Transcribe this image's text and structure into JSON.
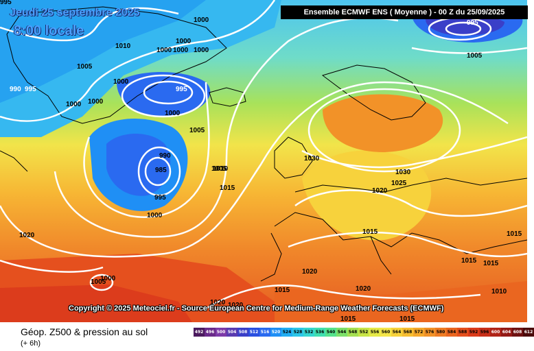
{
  "header": {
    "date_label": "Jeudi 25 septembre 2025",
    "time_label": "8:00 locale",
    "model_label": "Ensemble ECMWF ENS  ( Moyenne )  -  00 Z du 25/09/2025"
  },
  "copyright": "Copyright © 2025 Meteociel.fr - Source European Centre for Medium-Range Weather Forecasts (ECMWF)",
  "footer": {
    "title": "Géop. Z500 & pression au sol",
    "subtitle": "(+ 6h)"
  },
  "pressure_labels": [
    {
      "text": "995",
      "tone": "black"
    },
    {
      "text": "1000",
      "tone": "black"
    },
    {
      "text": "1010",
      "tone": "black"
    },
    {
      "text": "1000",
      "tone": "black"
    },
    {
      "text": "1000",
      "tone": "black"
    },
    {
      "text": "1005",
      "tone": "black"
    },
    {
      "text": "1000",
      "tone": "black"
    },
    {
      "text": "1000",
      "tone": "black"
    },
    {
      "text": "1005",
      "tone": "black"
    },
    {
      "text": "1000",
      "tone": "black"
    },
    {
      "text": "990",
      "tone": "white"
    },
    {
      "text": "995",
      "tone": "white"
    },
    {
      "text": "1000",
      "tone": "black"
    },
    {
      "text": "1000",
      "tone": "black"
    },
    {
      "text": "995",
      "tone": "white"
    },
    {
      "text": "1000",
      "tone": "black"
    },
    {
      "text": "1005",
      "tone": "black"
    },
    {
      "text": "990",
      "tone": "black"
    },
    {
      "text": "985",
      "tone": "black"
    },
    {
      "text": "995",
      "tone": "black"
    },
    {
      "text": "1010",
      "tone": "black"
    },
    {
      "text": "1015",
      "tone": "black"
    },
    {
      "text": "1000",
      "tone": "black"
    },
    {
      "text": "1020",
      "tone": "black"
    },
    {
      "text": "1030",
      "tone": "black"
    },
    {
      "text": "1030",
      "tone": "black"
    },
    {
      "text": "1025",
      "tone": "black"
    },
    {
      "text": "1020",
      "tone": "black"
    },
    {
      "text": "1015",
      "tone": "black"
    },
    {
      "text": "1020",
      "tone": "black"
    },
    {
      "text": "1015",
      "tone": "black"
    },
    {
      "text": "1020",
      "tone": "black"
    },
    {
      "text": "1015",
      "tone": "black"
    },
    {
      "text": "1015",
      "tone": "black"
    },
    {
      "text": "1010",
      "tone": "black"
    },
    {
      "text": "1015",
      "tone": "black"
    },
    {
      "text": "1005",
      "tone": "black"
    },
    {
      "text": "1000",
      "tone": "black"
    },
    {
      "text": "1020",
      "tone": "black"
    },
    {
      "text": "1020",
      "tone": "black"
    },
    {
      "text": "1015",
      "tone": "black"
    },
    {
      "text": "1015",
      "tone": "black"
    },
    {
      "text": "995",
      "tone": "white"
    },
    {
      "text": "1005",
      "tone": "black"
    }
  ],
  "legend": {
    "values": [
      "492",
      "496",
      "500",
      "504",
      "508",
      "512",
      "516",
      "520",
      "524",
      "528",
      "532",
      "536",
      "540",
      "544",
      "548",
      "552",
      "556",
      "560",
      "564",
      "568",
      "572",
      "576",
      "580",
      "584",
      "588",
      "592",
      "596",
      "600",
      "604",
      "608",
      "612"
    ],
    "colors": [
      "#4b1a5e",
      "#6a2a8a",
      "#7d3aa8",
      "#5a3bb0",
      "#3a3fc8",
      "#2a4fe0",
      "#2a6af0",
      "#1f8ff5",
      "#22aef3",
      "#2cc6e8",
      "#35d6d0",
      "#40dfb0",
      "#55e28c",
      "#7ce06a",
      "#a5e052",
      "#c8e548",
      "#e6ea48",
      "#f5e64a",
      "#f7d23c",
      "#f7be32",
      "#f5a82c",
      "#f29228",
      "#ef7c24",
      "#ea6620",
      "#e5501e",
      "#dc3c1c",
      "#c9301a",
      "#b02418",
      "#931a16",
      "#6e1212",
      "#4a0a0a"
    ]
  }
}
